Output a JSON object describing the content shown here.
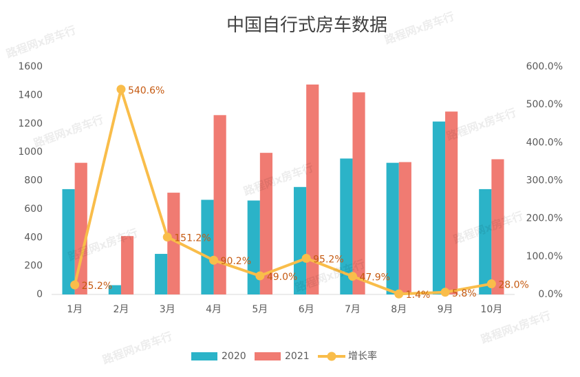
{
  "chart_data": {
    "type": "bar",
    "title": "中国自行式房车数据",
    "watermark": "路程网x房车行",
    "categories": [
      "1月",
      "2月",
      "3月",
      "4月",
      "5月",
      "6月",
      "7月",
      "8月",
      "9月",
      "10月"
    ],
    "series": [
      {
        "name": "2020",
        "color": "#2bb3c8",
        "values": [
          740,
          65,
          285,
          665,
          660,
          755,
          955,
          925,
          1215,
          740
        ]
      },
      {
        "name": "2021",
        "color": "#f07b72",
        "values": [
          925,
          410,
          715,
          1260,
          995,
          1475,
          1420,
          930,
          1285,
          950
        ]
      },
      {
        "name": "增长率",
        "type": "line",
        "axis": "y2",
        "color": "#f9bd4a",
        "values": [
          25.2,
          540.6,
          151.2,
          90.2,
          49.0,
          95.2,
          47.9,
          1.4,
          5.8,
          28.0
        ],
        "value_labels": [
          "25.2%",
          "540.6%",
          "151.2%",
          "90.2%",
          "49.0%",
          "95.2%",
          "47.9%",
          "1.4%",
          "5.8%",
          "28.0%"
        ]
      }
    ],
    "ylim": [
      0,
      1600
    ],
    "yticks": [
      0,
      200,
      400,
      600,
      800,
      1000,
      1200,
      1400,
      1600
    ],
    "y2lim": [
      0,
      600
    ],
    "y2ticks": [
      {
        "value": 0,
        "label": "0.0%"
      },
      {
        "value": 100,
        "label": "100.0%"
      },
      {
        "value": 200,
        "label": "200.0%"
      },
      {
        "value": 300,
        "label": "300.0%"
      },
      {
        "value": 400,
        "label": "400.0%"
      },
      {
        "value": 500,
        "label": "500.0%"
      },
      {
        "value": 600,
        "label": "600.0%"
      }
    ],
    "grid": false,
    "legend": "bottom"
  }
}
